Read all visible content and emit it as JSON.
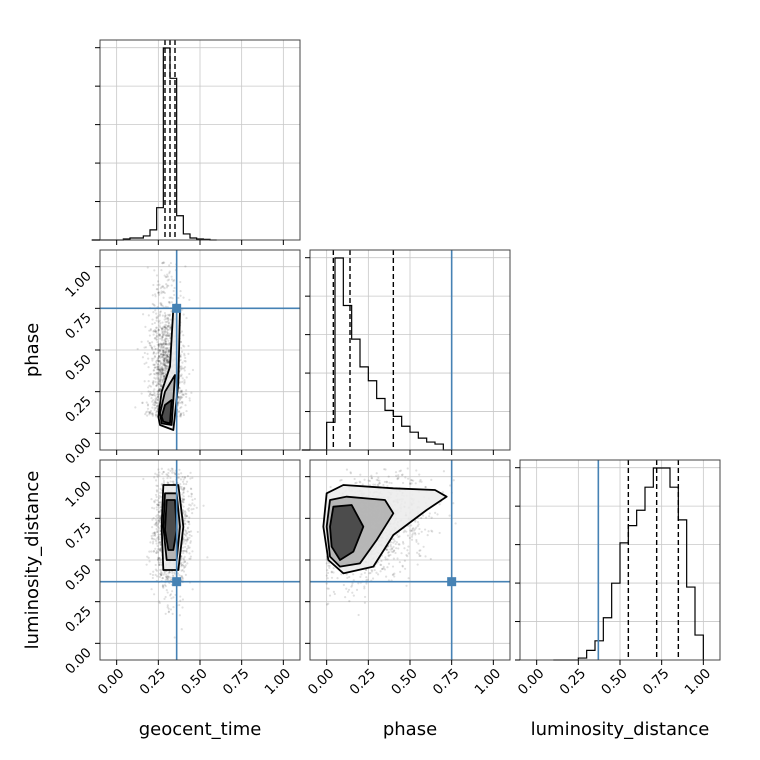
{
  "chart_data": {
    "type": "corner",
    "parameters": [
      "geocent_time",
      "phase",
      "luminosity_distance"
    ],
    "ticks": [
      "0.00",
      "0.25",
      "0.50",
      "0.75",
      "1.00"
    ],
    "tick_values": [
      0,
      0.25,
      0.5,
      0.75,
      1.0
    ],
    "axis_range": [
      -0.1,
      1.1
    ],
    "truths": [
      0.36,
      0.75,
      0.37
    ],
    "truth_color": "#4682b4",
    "grid": true,
    "histograms": [
      {
        "param": "geocent_time",
        "bin_edges": [
          0.0,
          0.04,
          0.08,
          0.12,
          0.16,
          0.2,
          0.24,
          0.28,
          0.32,
          0.36,
          0.4,
          0.44,
          0.48,
          0.52,
          0.56,
          0.6
        ],
        "counts": [
          0,
          0.005,
          0.01,
          0.01,
          0.02,
          0.05,
          0.16,
          0.95,
          0.8,
          0.12,
          0.03,
          0.01,
          0.005,
          0.003,
          0.0
        ],
        "quantiles": [
          0.29,
          0.32,
          0.35
        ]
      },
      {
        "param": "phase",
        "bin_edges": [
          0.0,
          0.05,
          0.1,
          0.15,
          0.2,
          0.25,
          0.3,
          0.35,
          0.4,
          0.45,
          0.5,
          0.55,
          0.6,
          0.65,
          0.7,
          0.75
        ],
        "counts": [
          0.14,
          0.97,
          0.73,
          0.56,
          0.42,
          0.35,
          0.26,
          0.2,
          0.17,
          0.12,
          0.09,
          0.06,
          0.04,
          0.03,
          0.0
        ],
        "quantiles": [
          0.04,
          0.14,
          0.4
        ]
      },
      {
        "param": "luminosity_distance",
        "bin_edges": [
          0.25,
          0.3,
          0.35,
          0.4,
          0.45,
          0.5,
          0.55,
          0.6,
          0.65,
          0.7,
          0.75,
          0.8,
          0.85,
          0.9,
          0.95,
          1.0
        ],
        "counts": [
          0.01,
          0.05,
          0.1,
          0.22,
          0.4,
          0.61,
          0.7,
          0.78,
          0.9,
          1.0,
          1.0,
          0.9,
          0.73,
          0.38,
          0.13
        ],
        "quantiles": [
          0.55,
          0.72,
          0.85
        ]
      }
    ],
    "pairs": [
      {
        "x": "geocent_time",
        "y": "phase",
        "center": [
          0.3,
          0.1
        ],
        "spread": [
          0.05,
          0.22
        ],
        "contours": [
          [
            [
              0.26,
              0.05
            ],
            [
              0.34,
              0.02
            ],
            [
              0.37,
              0.3
            ],
            [
              0.38,
              0.74
            ],
            [
              0.34,
              0.75
            ],
            [
              0.32,
              0.4
            ],
            [
              0.27,
              0.25
            ],
            [
              0.25,
              0.1
            ]
          ],
          [
            [
              0.27,
              0.06
            ],
            [
              0.33,
              0.05
            ],
            [
              0.35,
              0.35
            ],
            [
              0.29,
              0.25
            ],
            [
              0.26,
              0.12
            ]
          ],
          [
            [
              0.28,
              0.07
            ],
            [
              0.32,
              0.06
            ],
            [
              0.33,
              0.2
            ],
            [
              0.29,
              0.17
            ],
            [
              0.27,
              0.1
            ]
          ]
        ]
      },
      {
        "x": "geocent_time",
        "y": "luminosity_distance",
        "center": [
          0.33,
          0.68
        ],
        "spread": [
          0.05,
          0.18
        ],
        "contours": [
          [
            [
              0.28,
              0.95
            ],
            [
              0.37,
              0.95
            ],
            [
              0.4,
              0.7
            ],
            [
              0.37,
              0.44
            ],
            [
              0.28,
              0.44
            ],
            [
              0.27,
              0.7
            ]
          ],
          [
            [
              0.29,
              0.9
            ],
            [
              0.36,
              0.9
            ],
            [
              0.38,
              0.7
            ],
            [
              0.36,
              0.5
            ],
            [
              0.3,
              0.5
            ],
            [
              0.28,
              0.7
            ]
          ],
          [
            [
              0.3,
              0.86
            ],
            [
              0.35,
              0.86
            ],
            [
              0.36,
              0.68
            ],
            [
              0.34,
              0.56
            ],
            [
              0.31,
              0.56
            ],
            [
              0.29,
              0.68
            ]
          ]
        ]
      },
      {
        "x": "phase",
        "y": "luminosity_distance",
        "center": [
          0.12,
          0.65
        ],
        "spread": [
          0.18,
          0.15
        ],
        "contours": [
          [
            [
              0.0,
              0.9
            ],
            [
              0.1,
              0.95
            ],
            [
              0.4,
              0.93
            ],
            [
              0.65,
              0.92
            ],
            [
              0.72,
              0.88
            ],
            [
              0.6,
              0.8
            ],
            [
              0.4,
              0.65
            ],
            [
              0.28,
              0.46
            ],
            [
              0.1,
              0.42
            ],
            [
              0.01,
              0.5
            ],
            [
              -0.02,
              0.7
            ]
          ],
          [
            [
              0.02,
              0.86
            ],
            [
              0.12,
              0.88
            ],
            [
              0.35,
              0.86
            ],
            [
              0.4,
              0.78
            ],
            [
              0.3,
              0.62
            ],
            [
              0.2,
              0.48
            ],
            [
              0.08,
              0.46
            ],
            [
              0.02,
              0.52
            ],
            [
              0.0,
              0.7
            ]
          ],
          [
            [
              0.04,
              0.82
            ],
            [
              0.15,
              0.83
            ],
            [
              0.22,
              0.7
            ],
            [
              0.16,
              0.55
            ],
            [
              0.08,
              0.5
            ],
            [
              0.03,
              0.58
            ],
            [
              0.02,
              0.7
            ]
          ]
        ]
      }
    ]
  }
}
